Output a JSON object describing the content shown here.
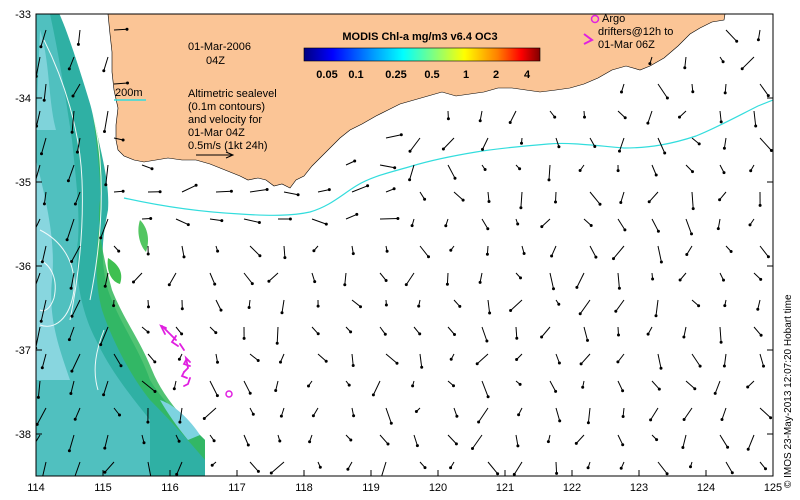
{
  "map": {
    "title": "MODIS Chl-a mg/m3 v6.4 OC3",
    "date": "01-Mar-2006",
    "time": "04Z",
    "contour_label": "200m",
    "sealevel_text": [
      "Altimetric sealevel",
      "(0.1m contours)",
      "and velocity for",
      "01-Mar 04Z",
      "0.5m/s (1kt 24h)"
    ],
    "argo_text": [
      "Argo",
      "drifters@12h to",
      "01-Mar 06Z"
    ],
    "credit": "© IMOS 23-May-2013 12:07:20 Hobart time",
    "colorbar_ticks": [
      "0.05",
      "0.1",
      "0.25",
      "0.5",
      "1",
      "2",
      "4"
    ],
    "x_ticks": [
      "114",
      "115",
      "116",
      "117",
      "118",
      "119",
      "120",
      "121",
      "122",
      "123",
      "124",
      "125"
    ],
    "y_ticks": [
      "-33",
      "-34",
      "-35",
      "-36",
      "-37",
      "-38"
    ],
    "lon_range": [
      114,
      125
    ],
    "lat_range": [
      -38.5,
      -33
    ],
    "colors": {
      "land": "#fbc596",
      "chl_dark": "#2fb0a4",
      "chl_light": "#7dd3e0",
      "chl_green": "#33b85a",
      "contour_200m": "#33dddd",
      "argo": "#e020e0",
      "vector": "#000000"
    }
  }
}
